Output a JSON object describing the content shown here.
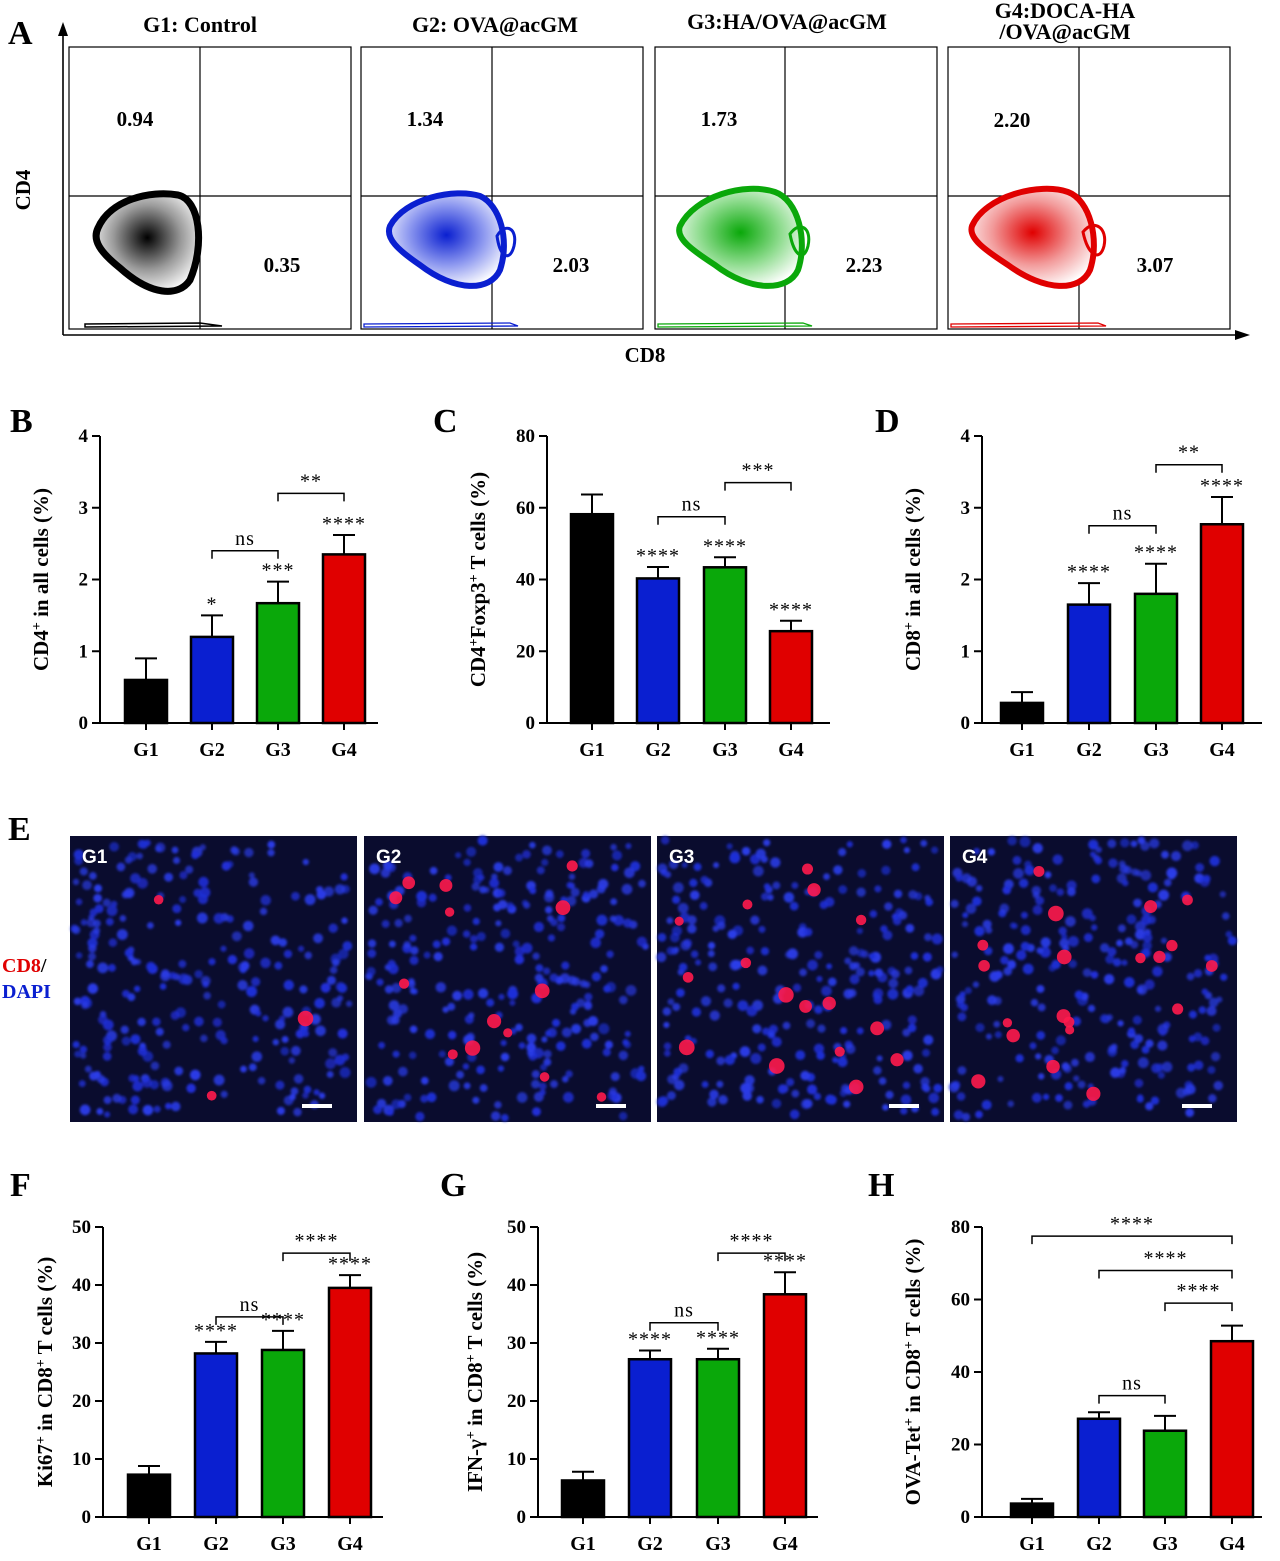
{
  "panel_a": {
    "letter": "A",
    "x_axis_label": "CD8",
    "y_axis_label": "CD4",
    "plots": [
      {
        "title": "G1: Control",
        "upper_left": "0.94",
        "lower_right": "0.35",
        "color": "#000000"
      },
      {
        "title": "G2: OVA@acGM",
        "upper_left": "1.34",
        "lower_right": "2.03",
        "color": "#0a1fd0"
      },
      {
        "title": "G3:HA/OVA@acGM",
        "upper_left": "1.73",
        "lower_right": "2.23",
        "color": "#0aa80a"
      },
      {
        "title_lines": [
          "G4:DOCA-HA",
          "/OVA@acGM"
        ],
        "upper_left": "2.20",
        "lower_right": "3.07",
        "color": "#e00000"
      }
    ]
  },
  "panel_e": {
    "letter": "E",
    "stain_label_red": "CD8",
    "stain_label_sep": "/",
    "stain_label_blue": "DAPI",
    "images": [
      {
        "label": "G1"
      },
      {
        "label": "G2"
      },
      {
        "label": "G3"
      },
      {
        "label": "G4"
      }
    ]
  },
  "chart_data": [
    {
      "panel": "B",
      "type": "bar",
      "categories": [
        "G1",
        "G2",
        "G3",
        "G4"
      ],
      "values": [
        0.6,
        1.2,
        1.67,
        2.35
      ],
      "errors": [
        0.3,
        0.3,
        0.3,
        0.27
      ],
      "colors": [
        "#000000",
        "#0a1fd0",
        "#0aa80a",
        "#e00000"
      ],
      "ylabel_main": "CD4",
      "ylabel_sup": "+",
      "ylabel_rest": " in all cells (%)",
      "ylim": [
        0,
        4
      ],
      "yticks": [
        0,
        1,
        2,
        3,
        4
      ],
      "ytick_labels": [
        "0",
        "1",
        "2",
        "3",
        "4"
      ],
      "bar_labels": [
        "",
        "*",
        "***",
        "****"
      ],
      "brackets": [
        {
          "from": 1,
          "to": 2,
          "label": "ns",
          "level": 2.4
        },
        {
          "from": 2,
          "to": 3,
          "label": "**",
          "level": 3.2
        }
      ]
    },
    {
      "panel": "C",
      "type": "bar",
      "categories": [
        "G1",
        "G2",
        "G3",
        "G4"
      ],
      "values": [
        58.2,
        40.3,
        43.4,
        25.6
      ],
      "errors": [
        5.5,
        3.2,
        2.8,
        2.9
      ],
      "colors": [
        "#000000",
        "#0a1fd0",
        "#0aa80a",
        "#e00000"
      ],
      "ylabel_main": "CD4",
      "ylabel_sup": "+",
      "ylabel_rest": "Foxp3",
      "ylabel_sup2": "+",
      "ylabel_rest2": " T cells (%)",
      "ylim": [
        0,
        80
      ],
      "yticks": [
        0,
        20,
        40,
        60,
        80
      ],
      "ytick_labels": [
        "0",
        "20",
        "40",
        "60",
        "80"
      ],
      "bar_labels": [
        "",
        "****",
        "****",
        "****"
      ],
      "brackets": [
        {
          "from": 1,
          "to": 2,
          "label": "ns",
          "level": 57.5
        },
        {
          "from": 2,
          "to": 3,
          "label": "***",
          "level": 67
        }
      ]
    },
    {
      "panel": "D",
      "type": "bar",
      "categories": [
        "G1",
        "G2",
        "G3",
        "G4"
      ],
      "values": [
        0.28,
        1.65,
        1.8,
        2.77
      ],
      "errors": [
        0.15,
        0.3,
        0.42,
        0.38
      ],
      "colors": [
        "#000000",
        "#0a1fd0",
        "#0aa80a",
        "#e00000"
      ],
      "ylabel_main": "CD8",
      "ylabel_sup": "+",
      "ylabel_rest": " in all cells (%)",
      "ylim": [
        0,
        4
      ],
      "yticks": [
        0,
        1,
        2,
        3,
        4
      ],
      "ytick_labels": [
        "0",
        "1",
        "2",
        "3",
        "4"
      ],
      "bar_labels": [
        "",
        "****",
        "****",
        "****"
      ],
      "brackets": [
        {
          "from": 1,
          "to": 2,
          "label": "ns",
          "level": 2.75
        },
        {
          "from": 2,
          "to": 3,
          "label": "**",
          "level": 3.6
        }
      ]
    },
    {
      "panel": "F",
      "type": "bar",
      "categories": [
        "G1",
        "G2",
        "G3",
        "G4"
      ],
      "values": [
        7.3,
        28.2,
        28.8,
        39.5
      ],
      "errors": [
        1.5,
        2.0,
        3.3,
        2.2
      ],
      "colors": [
        "#000000",
        "#0a1fd0",
        "#0aa80a",
        "#e00000"
      ],
      "ylabel_main": "Ki67",
      "ylabel_sup": "+",
      "ylabel_rest": " in CD8",
      "ylabel_sup2": "+",
      "ylabel_rest2": " T cells (%)",
      "ylim": [
        0,
        50
      ],
      "yticks": [
        0,
        10,
        20,
        30,
        40,
        50
      ],
      "ytick_labels": [
        "0",
        "10",
        "20",
        "30",
        "40",
        "50"
      ],
      "bar_labels": [
        "",
        "****",
        "****",
        "****"
      ],
      "brackets": [
        {
          "from": 1,
          "to": 2,
          "label": "ns",
          "level": 34.5
        },
        {
          "from": 2,
          "to": 3,
          "label": "****",
          "level": 45.5
        }
      ]
    },
    {
      "panel": "G",
      "type": "bar",
      "categories": [
        "G1",
        "G2",
        "G3",
        "G4"
      ],
      "values": [
        6.3,
        27.2,
        27.2,
        38.4
      ],
      "errors": [
        1.5,
        1.5,
        1.8,
        3.8
      ],
      "colors": [
        "#000000",
        "#0a1fd0",
        "#0aa80a",
        "#e00000"
      ],
      "ylabel_main": "IFN-γ",
      "ylabel_sup": "+",
      "ylabel_rest": " in CD8",
      "ylabel_sup2": "+",
      "ylabel_rest2": " T cells (%)",
      "ylim": [
        0,
        50
      ],
      "yticks": [
        0,
        10,
        20,
        30,
        40,
        50
      ],
      "ytick_labels": [
        "0",
        "10",
        "20",
        "30",
        "40",
        "50"
      ],
      "bar_labels": [
        "",
        "****",
        "****",
        "****"
      ],
      "brackets": [
        {
          "from": 1,
          "to": 2,
          "label": "ns",
          "level": 33.5
        },
        {
          "from": 2,
          "to": 3,
          "label": "****",
          "level": 45.5
        }
      ]
    },
    {
      "panel": "H",
      "type": "bar",
      "categories": [
        "G1",
        "G2",
        "G3",
        "G4"
      ],
      "values": [
        3.7,
        27.1,
        23.8,
        48.5
      ],
      "errors": [
        1.3,
        1.8,
        4.1,
        4.3
      ],
      "colors": [
        "#000000",
        "#0a1fd0",
        "#0aa80a",
        "#e00000"
      ],
      "ylabel_main": "OVA-Tet",
      "ylabel_sup": "+",
      "ylabel_rest": " in CD8",
      "ylabel_sup2": "+",
      "ylabel_rest2": " T cells (%)",
      "ylim": [
        0,
        80
      ],
      "yticks": [
        0,
        20,
        40,
        60,
        80
      ],
      "ytick_labels": [
        "0",
        "20",
        "40",
        "60",
        "80"
      ],
      "bar_labels": [
        "",
        "",
        "",
        ""
      ],
      "brackets": [
        {
          "from": 1,
          "to": 2,
          "label": "ns",
          "level": 33.5
        },
        {
          "from": 2,
          "to": 3,
          "label": "****",
          "level": 59
        },
        {
          "from": 1,
          "to": 3,
          "label": "****",
          "level": 68
        },
        {
          "from": 0,
          "to": 3,
          "label": "****",
          "level": 77.5
        }
      ]
    }
  ]
}
